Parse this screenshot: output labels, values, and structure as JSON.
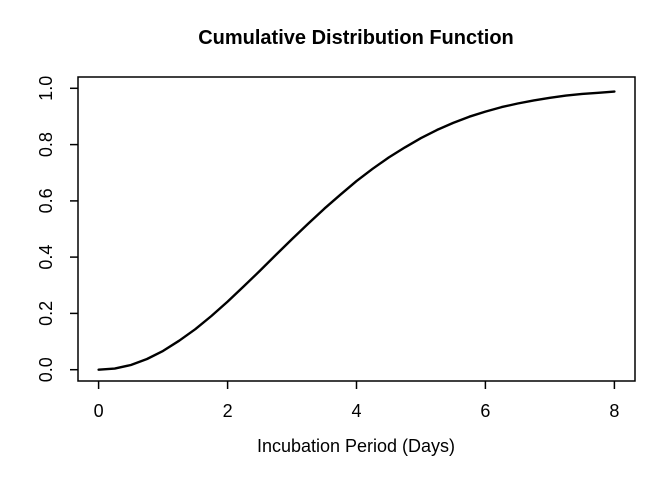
{
  "figure": {
    "background": "#ffffff"
  },
  "chart_data": {
    "type": "line",
    "title": "Cumulative Distribution Function",
    "xlabel": "Incubation Period (Days)",
    "ylabel": "",
    "x": [
      0,
      0.25,
      0.5,
      0.75,
      1,
      1.25,
      1.5,
      1.75,
      2,
      2.25,
      2.5,
      2.75,
      3,
      3.25,
      3.5,
      3.75,
      4,
      4.25,
      4.5,
      4.75,
      5,
      5.25,
      5.5,
      5.75,
      6,
      6.25,
      6.5,
      6.75,
      7,
      7.25,
      7.5,
      7.75,
      8
    ],
    "y": [
      0,
      0.004,
      0.017,
      0.038,
      0.067,
      0.103,
      0.144,
      0.191,
      0.242,
      0.296,
      0.351,
      0.408,
      0.464,
      0.519,
      0.572,
      0.622,
      0.67,
      0.714,
      0.754,
      0.79,
      0.823,
      0.852,
      0.877,
      0.899,
      0.917,
      0.933,
      0.946,
      0.957,
      0.966,
      0.974,
      0.98,
      0.984,
      0.988
    ],
    "xlim": [
      0,
      8
    ],
    "ylim": [
      0,
      1
    ],
    "xticks": [
      0,
      2,
      4,
      6,
      8
    ],
    "xtick_labels": [
      "0",
      "2",
      "4",
      "6",
      "8"
    ],
    "yticks": [
      0,
      0.2,
      0.4,
      0.6,
      0.8,
      1
    ],
    "ytick_labels": [
      "0.0",
      "0.2",
      "0.4",
      "0.6",
      "0.8",
      "1.0"
    ],
    "grid": false,
    "legend": "none",
    "line_color": "#000000",
    "axis_color": "#000000",
    "text_color": "#000000"
  }
}
